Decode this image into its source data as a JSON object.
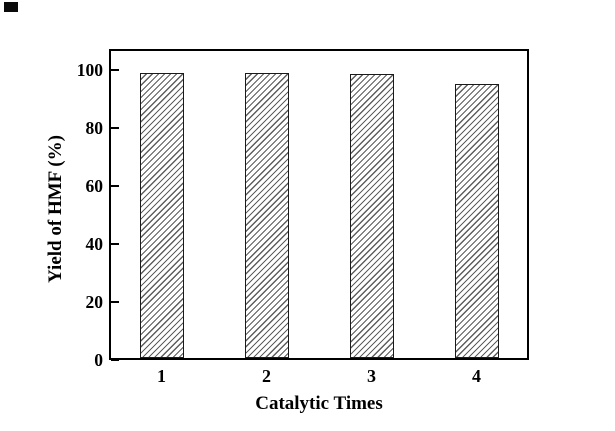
{
  "figure": {
    "background": "#ffffff",
    "corner_artifact": "black-rectangle"
  },
  "colors": {
    "axis": "#000000",
    "text": "#000000",
    "bar_border": "#1a1a1a",
    "bar_hatch_line": "#5e5e5e",
    "bar_fill_background": "#ffffff",
    "plot_background": "#ffffff"
  },
  "chart_data": {
    "type": "bar",
    "title": "",
    "categories": [
      "1",
      "2",
      "3",
      "4"
    ],
    "values": [
      99,
      99,
      98.5,
      95
    ],
    "xlabel": "Catalytic Times",
    "ylabel": "Yield of HMF (%)",
    "ylim": [
      0,
      107.2
    ],
    "yticks": [
      0,
      20,
      40,
      60,
      80,
      100
    ],
    "y_tick_direction": "in",
    "x_ticks_visible": false,
    "grid": false,
    "legend": "none",
    "bar_fill": "diagonal-hatch-forward-slash"
  }
}
